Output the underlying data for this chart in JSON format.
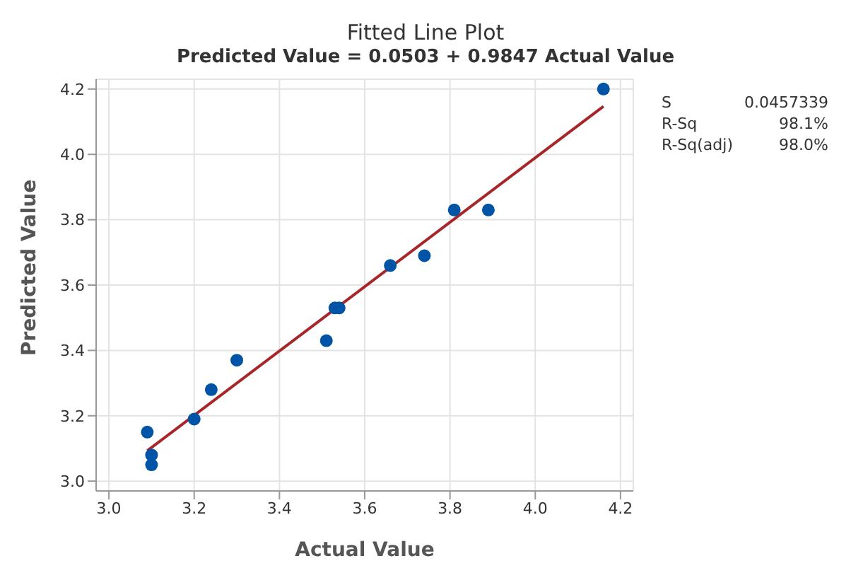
{
  "chart_data": {
    "type": "scatter",
    "title": "Fitted Line Plot",
    "subtitle": "Predicted Value = 0.0503 + 0.9847 Actual Value",
    "xlabel": "Actual Value",
    "ylabel": "Predicted Value",
    "xlim": [
      2.97,
      4.23
    ],
    "ylim": [
      2.97,
      4.23
    ],
    "xticks": [
      {
        "value": 3,
        "label": "3.0"
      },
      3.2,
      3.4,
      3.6,
      3.8,
      {
        "value": 4,
        "label": "4.0"
      },
      4.2
    ],
    "yticks": [
      {
        "value": 3,
        "label": "3.0"
      },
      3.2,
      3.4,
      3.6,
      3.8,
      {
        "value": 4,
        "label": "4.0"
      },
      4.2
    ],
    "grid": true,
    "annotations": [
      "S",
      "0.0457339",
      "R-Sq",
      "98.1%",
      "R-Sq(adj)",
      "98.0%"
    ],
    "series": [
      {
        "marker": "circle",
        "color": "#0054a6",
        "x": [
          3.09,
          3.1,
          3.1,
          3.2,
          3.24,
          3.3,
          3.51,
          3.53,
          3.54,
          3.66,
          3.74,
          3.81,
          3.89,
          4.16
        ],
        "values": [
          3.15,
          3.08,
          3.05,
          3.19,
          3.28,
          3.37,
          3.43,
          3.53,
          3.53,
          3.66,
          3.69,
          3.83,
          3.83,
          4.2
        ]
      },
      {
        "type": "line",
        "color": "#a6262a",
        "x": [
          3.09,
          4.16
        ],
        "values": [
          3.093,
          4.147
        ]
      }
    ]
  }
}
